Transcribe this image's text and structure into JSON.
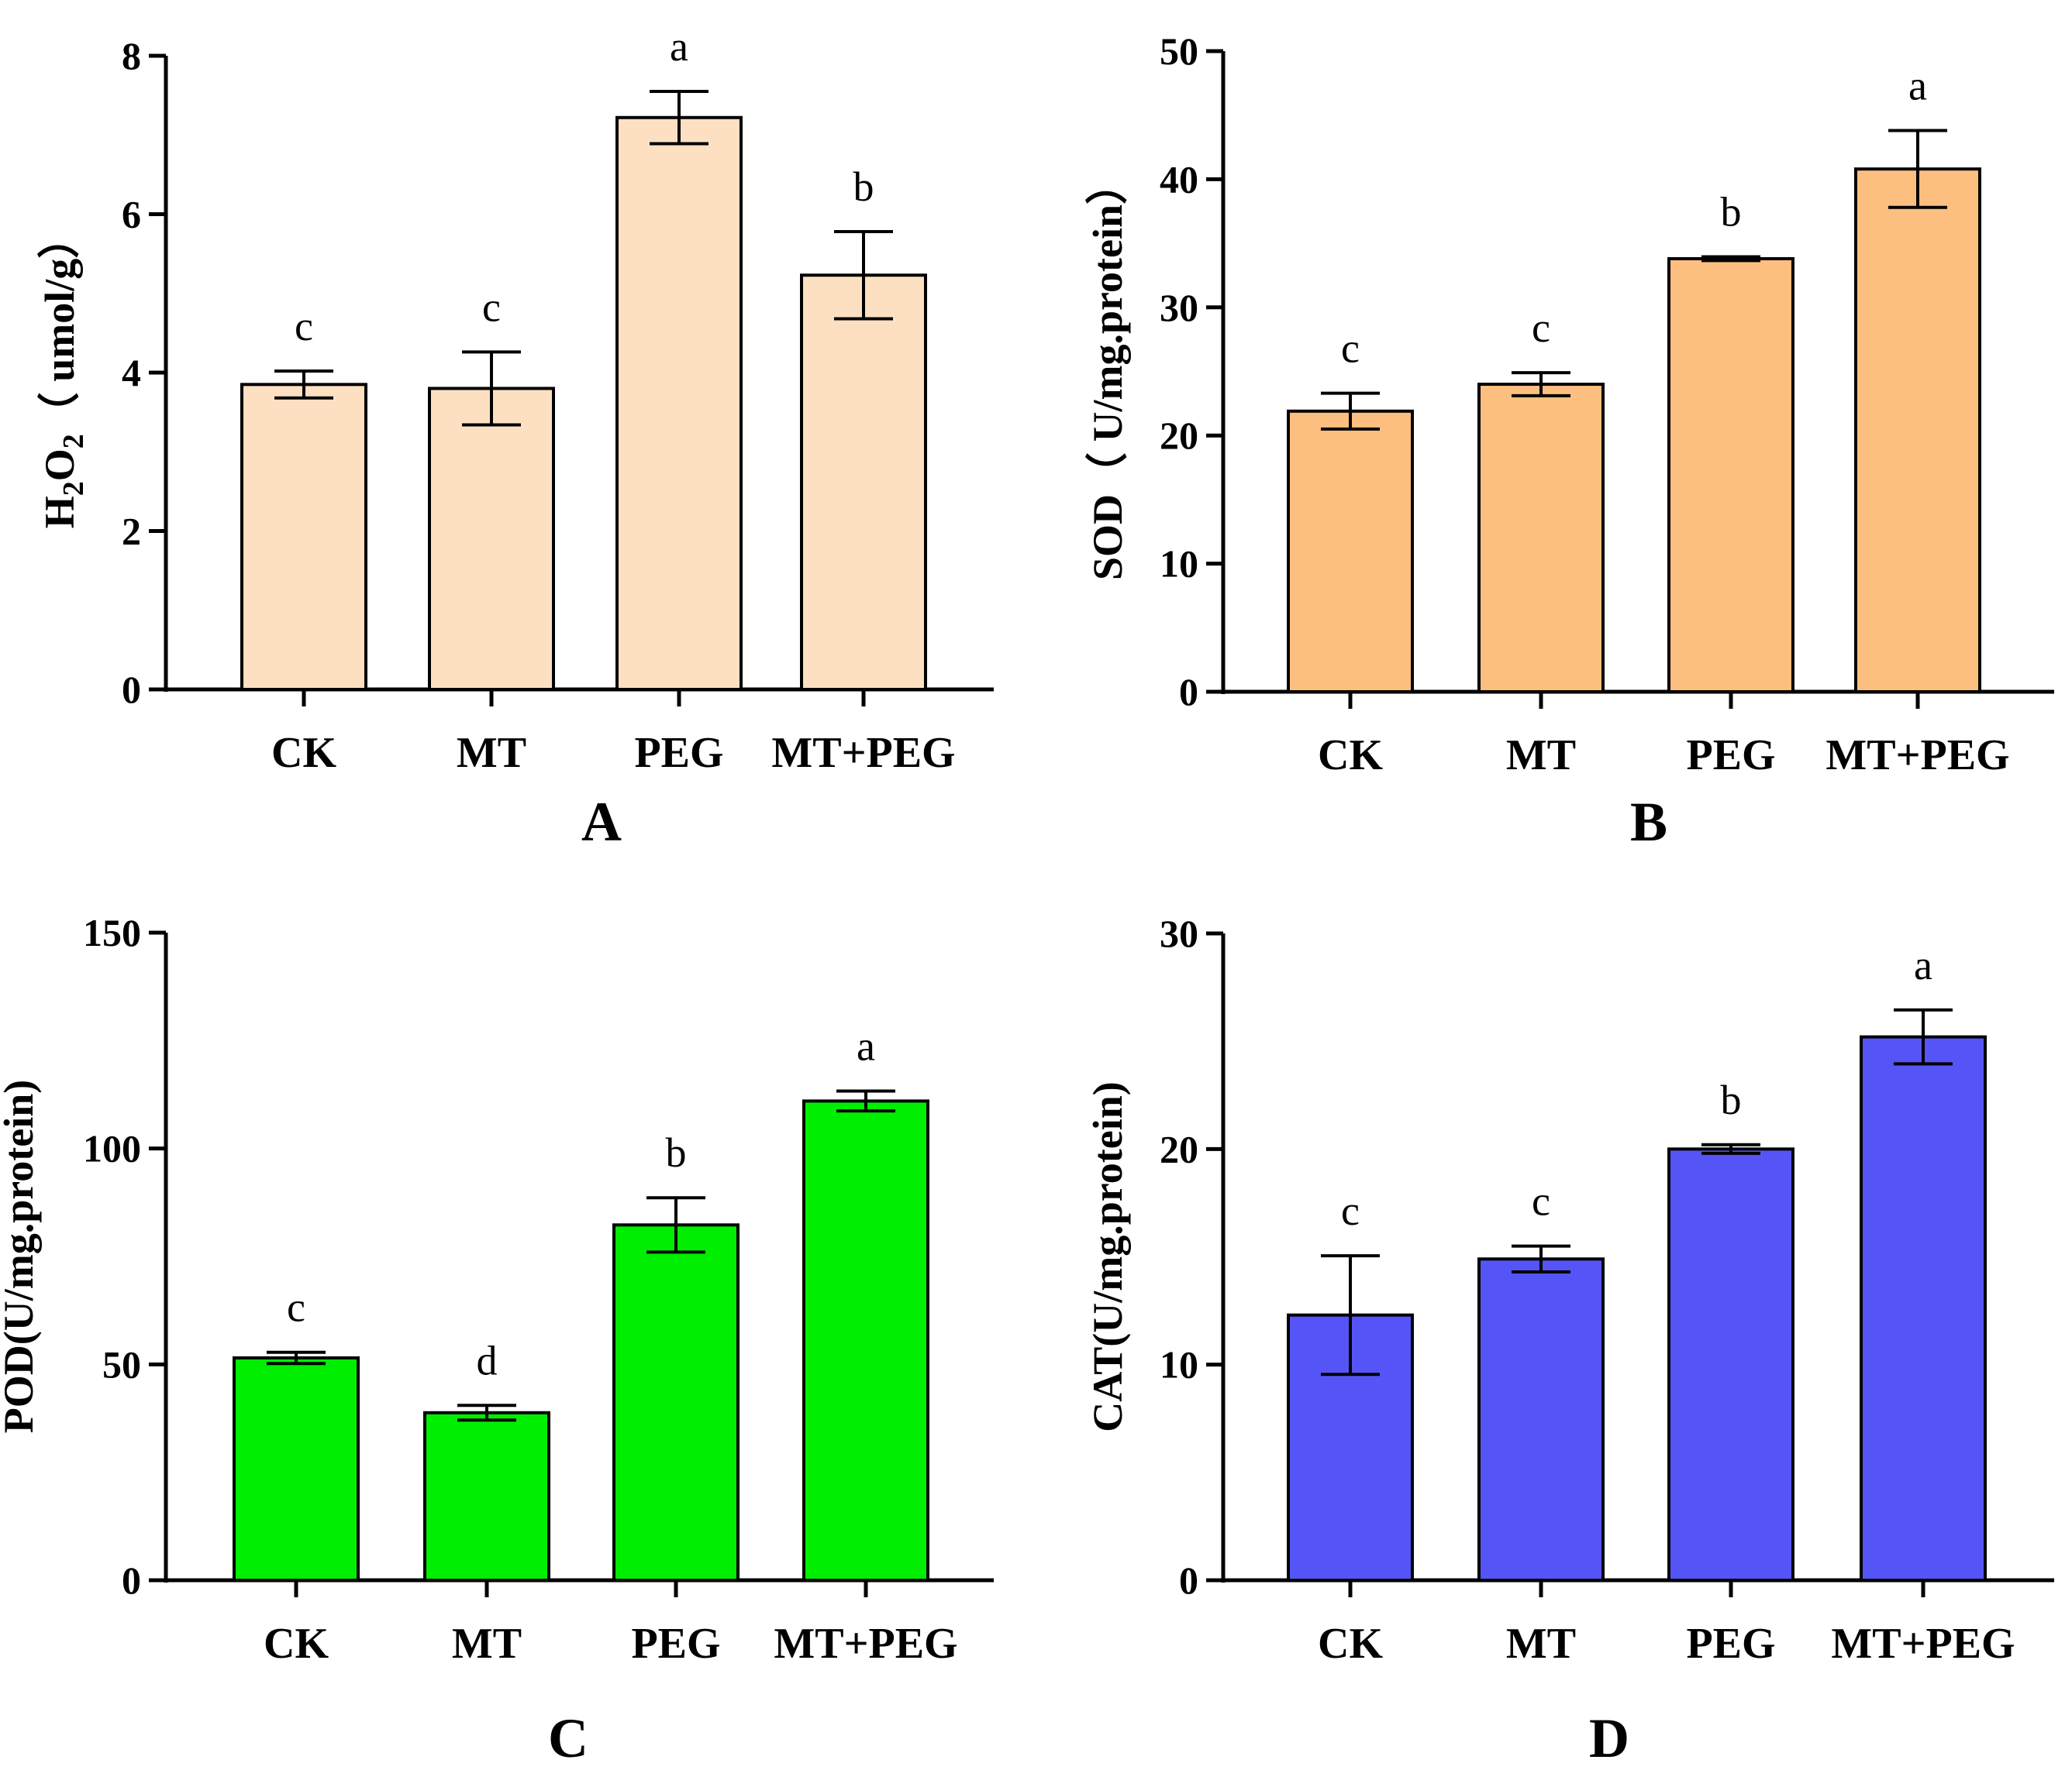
{
  "chart_data": [
    {
      "type": "bar",
      "panel": "A",
      "categories": [
        "CK",
        "MT",
        "PEG",
        "MT+PEG"
      ],
      "values": [
        3.85,
        3.8,
        7.22,
        5.23
      ],
      "errors": [
        0.17,
        0.46,
        0.33,
        0.55
      ],
      "significance": [
        "c",
        "c",
        "a",
        "b"
      ],
      "ylabel": "H2O2（ umol/g）",
      "ylabel_parts": {
        "h": "H",
        "sub1": "2",
        "o": "O",
        "sub2": "2",
        "rest": "（ umol/g）"
      },
      "ylim": [
        0,
        8
      ],
      "yticks": [
        0,
        2,
        4,
        6,
        8
      ],
      "yticks_labels": [
        "0",
        "2",
        "4",
        "6",
        "8"
      ],
      "color": "#fde0c2"
    },
    {
      "type": "bar",
      "panel": "B",
      "categories": [
        "CK",
        "MT",
        "PEG",
        "MT+PEG"
      ],
      "values": [
        21.9,
        24.0,
        33.8,
        40.8
      ],
      "errors": [
        1.4,
        0.9,
        0.15,
        3.0
      ],
      "significance": [
        "c",
        "c",
        "b",
        "a"
      ],
      "ylabel": "SOD（ U/mg.protein）",
      "ylim": [
        0,
        50
      ],
      "yticks": [
        0,
        10,
        20,
        30,
        40,
        50
      ],
      "yticks_labels": [
        "0",
        "10",
        "20",
        "30",
        "40",
        "50"
      ],
      "color": "#fdbf80"
    },
    {
      "type": "bar",
      "panel": "C",
      "categories": [
        "CK",
        "MT",
        "PEG",
        "MT+PEG"
      ],
      "values": [
        51.5,
        38.8,
        82.3,
        111.0
      ],
      "errors": [
        1.3,
        1.7,
        6.3,
        2.3
      ],
      "significance": [
        "c",
        "d",
        "b",
        "a"
      ],
      "ylabel": "POD(U/mg.protein)",
      "ylim": [
        0,
        150
      ],
      "yticks": [
        0,
        50,
        100,
        150
      ],
      "yticks_labels": [
        "0",
        "50",
        "100",
        "150"
      ],
      "color": "#00ee00"
    },
    {
      "type": "bar",
      "panel": "D",
      "categories": [
        "CK",
        "MT",
        "PEG",
        "MT+PEG"
      ],
      "values": [
        12.3,
        14.9,
        20.0,
        25.2
      ],
      "errors": [
        2.75,
        0.6,
        0.2,
        1.25
      ],
      "significance": [
        "c",
        "c",
        "b",
        "a"
      ],
      "ylabel": "CAT(U/mg.protein)",
      "ylim": [
        0,
        30
      ],
      "yticks": [
        0,
        10,
        20,
        30
      ],
      "yticks_labels": [
        "0",
        "10",
        "20",
        "30"
      ],
      "color": "#5555f7"
    }
  ]
}
